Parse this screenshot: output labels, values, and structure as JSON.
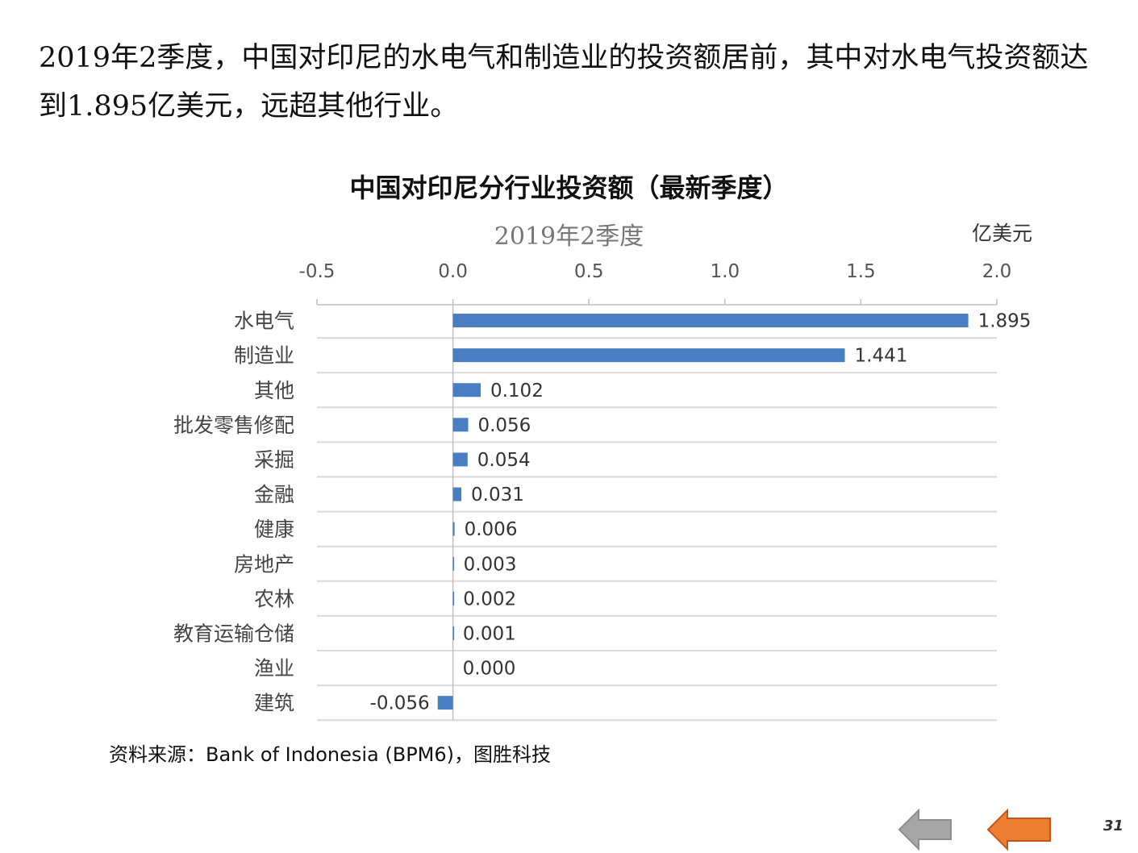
{
  "slide": {
    "headline": "2019年2季度，中国对印尼的水电气和制造业的投资额居前，其中对水电气投资额达到1.895亿美元，远超其他行业。",
    "source": "资料来源：Bank of Indonesia (BPM6)，图胜科技",
    "page_number": "31"
  },
  "nav": {
    "prev_icon": "left-arrow-icon",
    "prev_color": "#A6A6A6",
    "next_icon": "left-arrow-icon",
    "next_color": "#ED7D31"
  },
  "chart_data": {
    "type": "bar",
    "orientation": "horizontal",
    "title": "中国对印尼分行业投资额（最新季度）",
    "subtitle": "2019年2季度",
    "unit": "亿美元",
    "xlim": [
      -0.5,
      2.0
    ],
    "x_ticks": [
      "-0.5",
      "0.0",
      "0.5",
      "1.0",
      "1.5",
      "2.0"
    ],
    "x_tick_values": [
      -0.5,
      0.0,
      0.5,
      1.0,
      1.5,
      2.0
    ],
    "x_axis_position": "top",
    "grid": "horizontal separators between categories",
    "bar_color": "#4A7EC2",
    "categories": [
      "水电气",
      "制造业",
      "其他",
      "批发零售修配",
      "采掘",
      "金融",
      "健康",
      "房地产",
      "农林",
      "教育运输仓储",
      "渔业",
      "建筑"
    ],
    "values": [
      1.895,
      1.441,
      0.102,
      0.056,
      0.054,
      0.031,
      0.006,
      0.003,
      0.002,
      0.001,
      0.0,
      -0.056
    ],
    "data_labels": [
      "1.895",
      "1.441",
      "0.102",
      "0.056",
      "0.054",
      "0.031",
      "0.006",
      "0.003",
      "0.002",
      "0.001",
      "0.000",
      "-0.056"
    ]
  }
}
